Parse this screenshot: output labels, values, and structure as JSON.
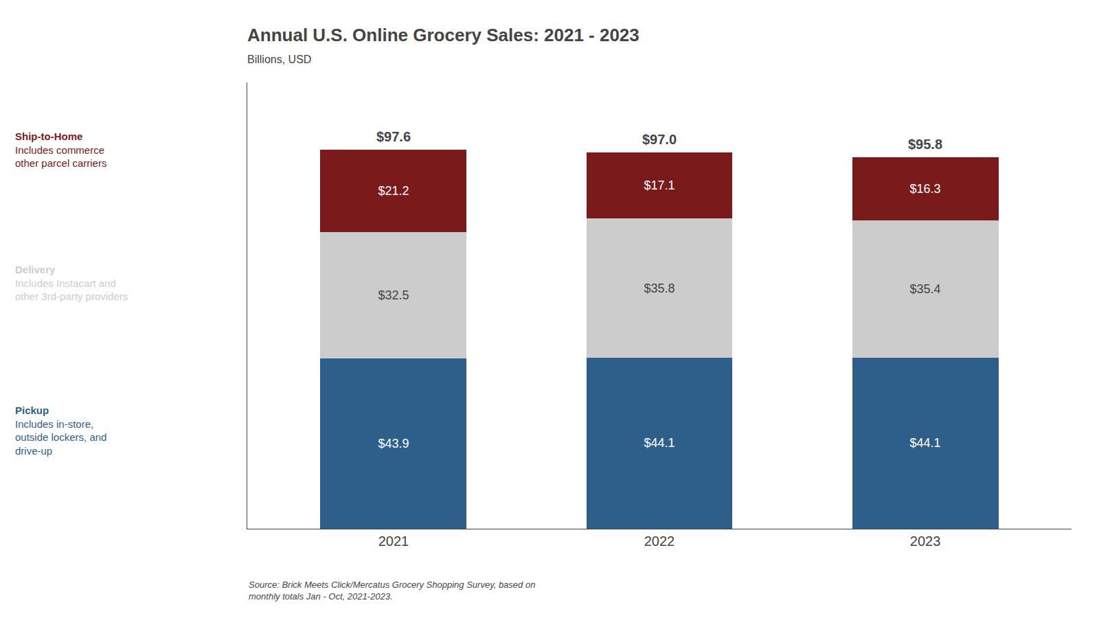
{
  "chart_data": {
    "type": "bar",
    "title": "Annual U.S. Online Grocery Sales: 2021 - 2023",
    "subtitle": "Billions, USD",
    "categories": [
      "2021",
      "2022",
      "2023"
    ],
    "series": [
      {
        "name": "Pickup",
        "color": "#2E5F8A",
        "values": [
          43.9,
          44.1,
          44.1
        ],
        "value_labels": [
          "$43.9",
          "$44.1",
          "$44.1"
        ]
      },
      {
        "name": "Delivery",
        "color": "#CCCCCC",
        "values": [
          32.5,
          35.8,
          35.4
        ],
        "value_labels": [
          "$32.5",
          "$35.8",
          "$35.4"
        ]
      },
      {
        "name": "Ship-to-Home",
        "color": "#7B1A1A",
        "values": [
          21.2,
          17.1,
          16.3
        ],
        "value_labels": [
          "$21.2",
          "$17.1",
          "$16.3"
        ]
      }
    ],
    "stacked": true,
    "data_labels": true,
    "totals": {
      "values": [
        97.6,
        97.0,
        95.8
      ],
      "value_labels": [
        "$97.6",
        "$97.0",
        "$95.8"
      ]
    },
    "annotations": [
      {
        "series": "Pickup",
        "text": "Includes in-store,\noutside lockers, and\ndrive-up"
      },
      {
        "series": "Delivery",
        "text": "Includes Instacart and\nother 3rd-party providers"
      },
      {
        "series": "Ship-to-Home",
        "text": "Includes commerce\nother parcel carriers"
      }
    ],
    "source": "Source: Brick Meets Click/Mercatus Grocery Shopping Survey, based on\nmonthly totals Jan - Oct, 2021-2023.",
    "ylim": [
      0,
      115
    ],
    "yticks": [],
    "tick_labels": "x",
    "grid": false
  }
}
